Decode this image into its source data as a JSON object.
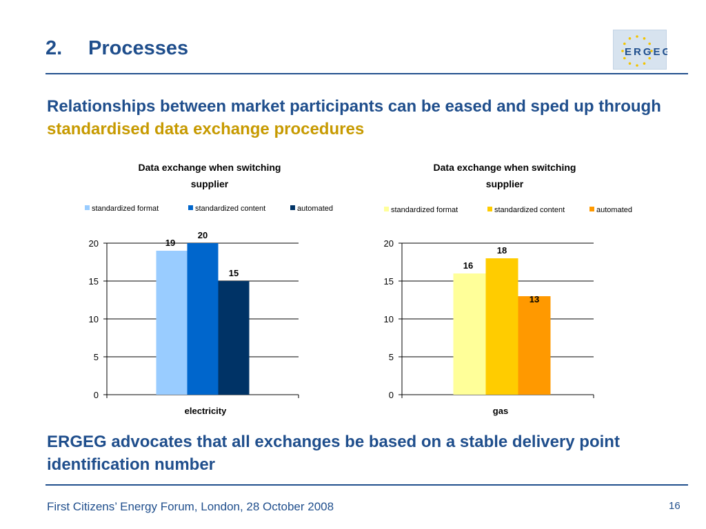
{
  "slide": {
    "number": "2.",
    "title": "Processes",
    "headline_part1": "Relationships between market participants can be eased and sped up through ",
    "headline_highlight": "standardised data exchange procedures",
    "conclusion": "ERGEG advocates that all exchanges be based on a stable delivery point identification number",
    "footer": "First Citizens’ Energy Forum, London, 28 October 2008",
    "page_number": "16"
  },
  "logo": {
    "text": "ERGEG",
    "bg_color": "#d7e3ef",
    "letter_color": "#1f4e8c",
    "star_color": "#f2c400"
  },
  "colors": {
    "title": "#1f4e8c",
    "highlight": "#c79a00"
  },
  "chart_data": [
    {
      "type": "bar",
      "title_lines": [
        "Data exchange when switching",
        "supplier"
      ],
      "categories": [
        "electricity"
      ],
      "series": [
        {
          "name": "standardized format",
          "values": [
            19
          ],
          "color": "#99ccff"
        },
        {
          "name": "standardized content",
          "values": [
            20
          ],
          "color": "#0066cc"
        },
        {
          "name": "automated",
          "values": [
            15
          ],
          "color": "#003366"
        }
      ],
      "ylim": [
        0,
        20
      ],
      "yticks": [
        "0",
        "5",
        "10",
        "15",
        "20"
      ],
      "grid": true,
      "legend_position": "top"
    },
    {
      "type": "bar",
      "title_lines": [
        "Data exchange when switching",
        "supplier"
      ],
      "categories": [
        "gas"
      ],
      "series": [
        {
          "name": "standardized format",
          "values": [
            16
          ],
          "color": "#ffff99"
        },
        {
          "name": "standardized content",
          "values": [
            18
          ],
          "color": "#ffcc00"
        },
        {
          "name": "automated",
          "values": [
            13
          ],
          "color": "#ff9900"
        }
      ],
      "ylim": [
        0,
        20
      ],
      "yticks": [
        "0",
        "5",
        "10",
        "15",
        "20"
      ],
      "grid": true,
      "legend_position": "top"
    }
  ]
}
